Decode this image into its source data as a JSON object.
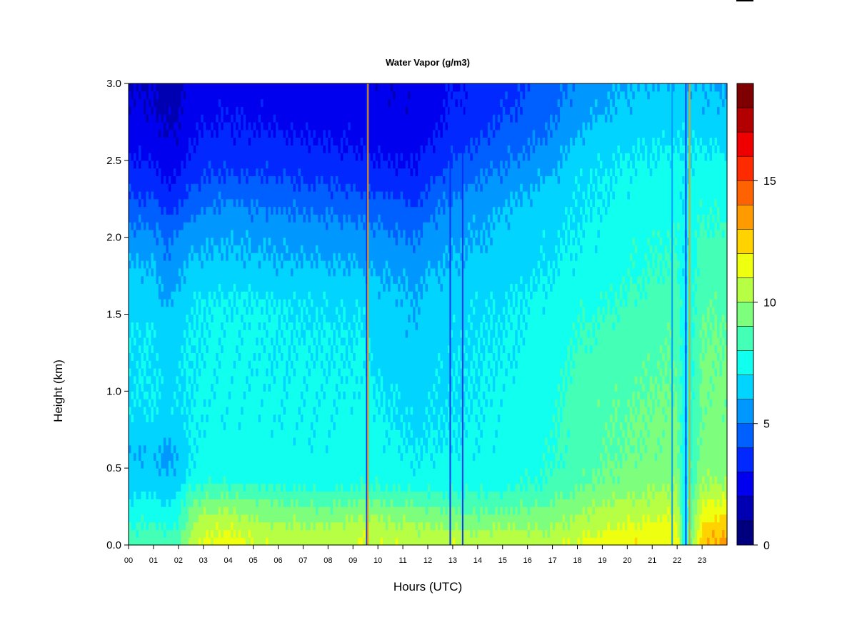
{
  "chart_data": {
    "type": "heatmap",
    "title": "Water Vapor (g/m3)",
    "xlabel": "Hours (UTC)",
    "ylabel": "Height (km)",
    "xlim": [
      0,
      24
    ],
    "ylim": [
      0,
      3
    ],
    "x_ticks": [
      "00",
      "01",
      "02",
      "03",
      "04",
      "05",
      "06",
      "07",
      "08",
      "09",
      "10",
      "11",
      "12",
      "13",
      "14",
      "15",
      "16",
      "17",
      "18",
      "19",
      "20",
      "21",
      "22",
      "23"
    ],
    "y_ticks": [
      "0.0",
      "0.5",
      "1.0",
      "1.5",
      "2.0",
      "2.5",
      "3.0"
    ],
    "colorbar": {
      "range": [
        0,
        19
      ],
      "ticks": [
        0,
        5,
        10,
        15
      ],
      "colors": [
        "#00007f",
        "#0000b2",
        "#0000ef",
        "#0028ff",
        "#0060ff",
        "#0098ff",
        "#00d4ff",
        "#10ffee",
        "#44ffb6",
        "#7dff7d",
        "#b6ff44",
        "#eeff10",
        "#ffd200",
        "#ff9a00",
        "#ff6200",
        "#ff2b00",
        "#ef0000",
        "#b20000",
        "#7f0000"
      ]
    },
    "hours": [
      0,
      1,
      1.5,
      2,
      2.5,
      3,
      4,
      5,
      6,
      7,
      8,
      9,
      9.5,
      10,
      11,
      11.5,
      12,
      13,
      14,
      15,
      16,
      17,
      18,
      19,
      20,
      21,
      22,
      22.3,
      23,
      24
    ],
    "heights": [
      0,
      0.1,
      0.2,
      0.3,
      0.4,
      0.5,
      0.6,
      0.8,
      1.0,
      1.2,
      1.4,
      1.6,
      1.8,
      2.0,
      2.2,
      2.4,
      2.6,
      2.8,
      3.0
    ],
    "values_by_height": [
      [
        8.5,
        8.8,
        8.6,
        8.9,
        10.5,
        11.2,
        11.5,
        11.0,
        10.8,
        10.5,
        10.5,
        10.8,
        11.2,
        11.0,
        10.8,
        10.6,
        10.8,
        10.9,
        10.9,
        10.8,
        10.9,
        10.8,
        11.2,
        11.5,
        11.8,
        11.9,
        11.8,
        7.0,
        12.8,
        13.5
      ],
      [
        8.0,
        8.3,
        8.0,
        8.3,
        10.0,
        10.8,
        11.0,
        10.5,
        10.3,
        10.2,
        10.2,
        10.5,
        10.8,
        10.5,
        10.3,
        10.2,
        10.3,
        10.0,
        10.0,
        10.0,
        10.1,
        10.0,
        10.6,
        11.0,
        11.2,
        11.4,
        11.5,
        7.0,
        12.3,
        13.0
      ],
      [
        7.5,
        7.8,
        7.5,
        7.8,
        9.3,
        10.0,
        10.2,
        9.8,
        9.6,
        9.5,
        9.4,
        9.7,
        10.0,
        9.8,
        9.6,
        9.5,
        9.4,
        9.2,
        9.0,
        9.2,
        9.3,
        9.5,
        10.0,
        10.4,
        10.6,
        10.8,
        11.0,
        7.0,
        11.5,
        12.0
      ],
      [
        7.0,
        7.2,
        6.8,
        7.2,
        8.8,
        9.2,
        9.3,
        9.0,
        8.8,
        8.6,
        8.6,
        8.8,
        9.0,
        8.8,
        8.6,
        8.5,
        8.5,
        8.4,
        8.3,
        8.4,
        8.6,
        8.8,
        9.4,
        9.8,
        10.0,
        10.2,
        10.4,
        7.0,
        10.8,
        11.0
      ],
      [
        6.5,
        6.6,
        6.3,
        6.6,
        7.5,
        7.8,
        7.9,
        7.8,
        7.7,
        7.7,
        7.6,
        7.8,
        7.9,
        7.8,
        7.6,
        7.4,
        7.5,
        7.6,
        7.5,
        7.7,
        7.9,
        8.2,
        8.8,
        9.2,
        9.4,
        9.6,
        9.8,
        7.0,
        10.0,
        10.0
      ],
      [
        6.2,
        6.3,
        5.9,
        6.2,
        7.2,
        7.4,
        7.5,
        7.5,
        7.4,
        7.4,
        7.4,
        7.5,
        7.6,
        7.5,
        7.3,
        7.1,
        7.2,
        7.3,
        7.3,
        7.5,
        7.7,
        8.0,
        8.6,
        9.0,
        9.2,
        9.4,
        9.6,
        7.0,
        9.6,
        9.6
      ],
      [
        6.0,
        6.1,
        5.7,
        6.0,
        7.1,
        7.3,
        7.4,
        7.4,
        7.3,
        7.3,
        7.3,
        7.4,
        7.5,
        7.4,
        7.2,
        7.0,
        7.1,
        7.2,
        7.2,
        7.4,
        7.6,
        7.9,
        8.5,
        8.8,
        9.0,
        9.2,
        9.4,
        7.0,
        9.4,
        9.4
      ],
      [
        6.8,
        6.9,
        6.5,
        6.8,
        7.0,
        7.2,
        7.3,
        7.3,
        7.2,
        7.2,
        7.2,
        7.3,
        7.4,
        7.2,
        6.9,
        6.7,
        6.9,
        7.0,
        7.1,
        7.3,
        7.5,
        7.8,
        8.5,
        8.8,
        9.0,
        9.2,
        9.3,
        7.0,
        9.3,
        9.3
      ],
      [
        6.9,
        7.0,
        6.6,
        6.9,
        7.0,
        7.2,
        7.3,
        7.3,
        7.2,
        7.2,
        7.2,
        7.2,
        7.3,
        7.0,
        6.8,
        6.5,
        6.8,
        6.9,
        7.0,
        7.2,
        7.4,
        7.7,
        8.4,
        8.7,
        8.8,
        9.0,
        9.1,
        7.0,
        9.2,
        9.2
      ],
      [
        6.9,
        7.0,
        6.6,
        6.9,
        7.0,
        7.1,
        7.2,
        7.2,
        7.1,
        7.1,
        7.1,
        7.1,
        7.2,
        6.7,
        6.4,
        6.3,
        6.6,
        6.9,
        7.0,
        7.1,
        7.3,
        7.6,
        8.2,
        8.4,
        8.6,
        8.8,
        9.0,
        7.0,
        9.1,
        9.1
      ],
      [
        6.9,
        7.0,
        6.5,
        6.8,
        7.0,
        7.1,
        7.2,
        7.2,
        7.1,
        7.0,
        7.0,
        7.0,
        7.0,
        6.5,
        6.3,
        6.2,
        6.5,
        6.8,
        6.9,
        7.0,
        7.2,
        7.5,
        8.0,
        8.2,
        8.4,
        8.6,
        8.8,
        7.0,
        9.0,
        9.0
      ],
      [
        6.5,
        6.6,
        5.8,
        6.3,
        6.8,
        7.0,
        7.1,
        7.1,
        7.0,
        6.9,
        6.8,
        6.8,
        6.7,
        6.3,
        6.2,
        6.0,
        6.3,
        6.6,
        6.8,
        6.9,
        7.1,
        7.3,
        7.6,
        7.8,
        8.1,
        8.3,
        8.6,
        7.0,
        8.8,
        8.8
      ],
      [
        6.1,
        6.1,
        5.2,
        5.8,
        6.2,
        6.3,
        6.4,
        6.3,
        6.2,
        6.1,
        6.1,
        6.0,
        6.0,
        5.9,
        5.7,
        5.3,
        5.9,
        6.1,
        6.3,
        6.5,
        6.8,
        7.0,
        7.3,
        7.5,
        7.8,
        8.0,
        8.2,
        7.0,
        8.5,
        8.5
      ],
      [
        5.4,
        5.3,
        4.8,
        5.2,
        5.6,
        5.8,
        5.9,
        5.8,
        5.7,
        5.6,
        5.5,
        5.5,
        5.5,
        5.3,
        5.1,
        4.9,
        5.4,
        5.8,
        6.0,
        6.3,
        6.5,
        6.8,
        7.1,
        7.3,
        7.6,
        7.8,
        8.0,
        7.0,
        8.2,
        8.2
      ],
      [
        4.4,
        4.3,
        3.8,
        4.0,
        4.6,
        4.9,
        5.2,
        5.0,
        4.9,
        4.8,
        4.7,
        4.6,
        4.5,
        4.4,
        4.2,
        4.1,
        4.6,
        5.2,
        5.6,
        6.0,
        6.3,
        6.6,
        6.9,
        7.1,
        7.3,
        7.5,
        7.7,
        7.0,
        7.8,
        7.8
      ],
      [
        3.4,
        3.3,
        2.8,
        3.0,
        3.6,
        3.9,
        4.1,
        4.0,
        3.9,
        3.8,
        3.7,
        3.6,
        3.4,
        3.3,
        3.2,
        3.1,
        3.7,
        4.4,
        4.9,
        5.2,
        5.6,
        6.1,
        6.8,
        7.0,
        7.2,
        7.3,
        7.5,
        7.0,
        7.5,
        7.5
      ],
      [
        2.7,
        2.6,
        2.2,
        2.4,
        3.0,
        3.2,
        3.4,
        3.3,
        3.2,
        3.1,
        3.0,
        2.9,
        2.8,
        2.7,
        2.6,
        2.6,
        3.0,
        3.6,
        4.1,
        4.5,
        4.9,
        5.4,
        6.2,
        6.6,
        6.8,
        6.9,
        7.0,
        7.0,
        7.0,
        6.8
      ],
      [
        2.2,
        2.1,
        1.7,
        1.9,
        2.5,
        2.7,
        2.9,
        2.8,
        2.7,
        2.6,
        2.6,
        2.5,
        2.4,
        2.4,
        2.3,
        2.3,
        2.6,
        3.1,
        3.5,
        3.9,
        4.3,
        4.8,
        5.6,
        6.0,
        6.3,
        6.5,
        6.6,
        6.6,
        6.4,
        6.2
      ],
      [
        2.0,
        1.9,
        1.5,
        1.7,
        2.3,
        2.5,
        2.6,
        2.5,
        2.5,
        2.4,
        2.4,
        2.3,
        2.3,
        2.3,
        2.2,
        2.2,
        2.4,
        2.9,
        3.3,
        3.6,
        4.0,
        4.5,
        5.2,
        5.6,
        5.9,
        6.1,
        6.2,
        6.2,
        6.0,
        5.9
      ]
    ],
    "streaks": [
      {
        "hour": 9.55,
        "value": 3.0
      },
      {
        "hour": 9.6,
        "value": 13.0
      },
      {
        "hour": 12.9,
        "value": 3.5
      },
      {
        "hour": 13.4,
        "value": 3.0
      },
      {
        "hour": 21.8,
        "value": 5.0
      },
      {
        "hour": 22.35,
        "value": 3.0
      },
      {
        "hour": 22.5,
        "value": 13.0
      }
    ]
  }
}
